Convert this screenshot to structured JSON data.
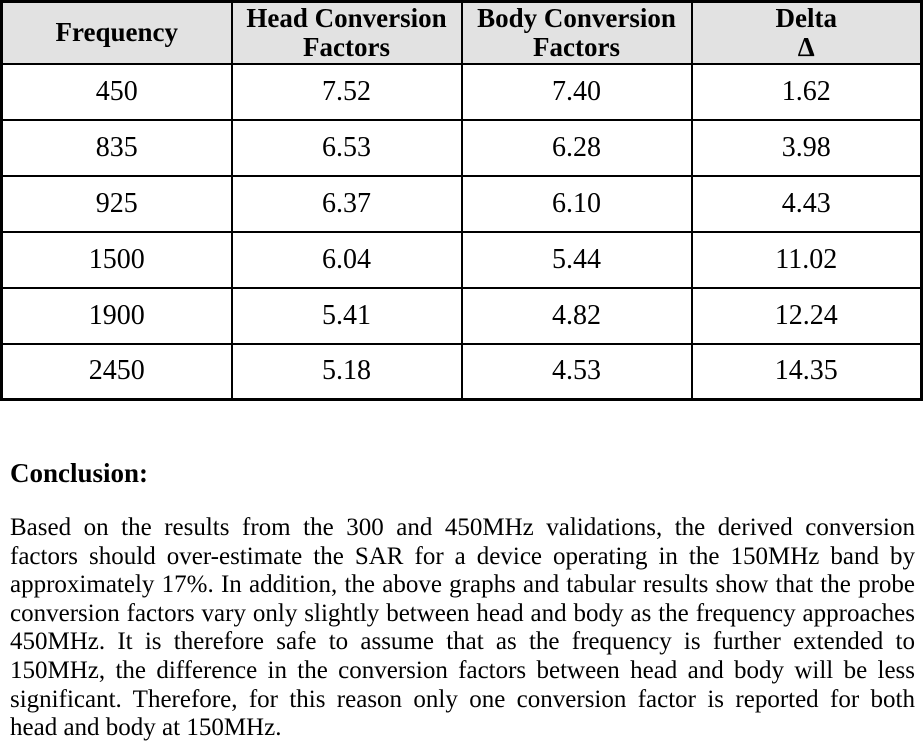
{
  "page": {
    "background": "#ffffff",
    "text_color": "#000000"
  },
  "table": {
    "header_bg": "#e2e2e2",
    "border_color": "#000000",
    "headers": [
      [
        "Frequency"
      ],
      [
        "Head Conversion",
        "Factors"
      ],
      [
        "Body Conversion",
        "Factors"
      ],
      [
        "Delta",
        "Δ"
      ]
    ],
    "rows": [
      [
        "450",
        "7.52",
        "7.40",
        "1.62"
      ],
      [
        "835",
        "6.53",
        "6.28",
        "3.98"
      ],
      [
        "925",
        "6.37",
        "6.10",
        "4.43"
      ],
      [
        "1500",
        "6.04",
        "5.44",
        "11.02"
      ],
      [
        "1900",
        "5.41",
        "4.82",
        "12.24"
      ],
      [
        "2450",
        "5.18",
        "4.53",
        "14.35"
      ]
    ]
  },
  "conclusion": {
    "heading": "Conclusion:",
    "lines": [
      "Based on the results from the 300 and 450MHz validations, the derived conversion",
      "factors should over-estimate the SAR for a device operating in the 150MHz band by",
      "approximately 17%.  In addition, the above graphs and tabular results show that the probe",
      "conversion factors vary only slightly between head and body as the frequency approaches",
      "450MHz.  It is therefore safe to assume that as the frequency is further extended to",
      "150MHz, the difference in the conversion factors between head and body will be less",
      "significant.  Therefore, for this reason only one conversion factor is reported for both",
      "head and body at 150MHz."
    ]
  }
}
